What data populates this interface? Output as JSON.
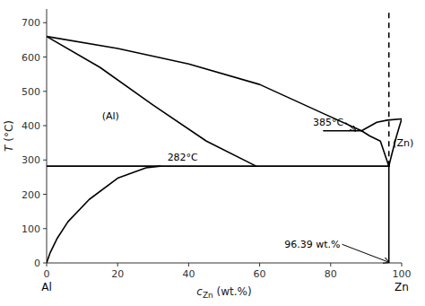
{
  "chart_data": {
    "type": "line",
    "xlabel": "cZn (wt.%)",
    "ylabel": "T (°C)",
    "xlim": [
      0,
      100
    ],
    "ylim": [
      0,
      740
    ],
    "xticks": [
      0,
      20,
      40,
      60,
      80,
      100
    ],
    "yticks": [
      0,
      100,
      200,
      300,
      400,
      500,
      600,
      700
    ],
    "grid": false,
    "color": "#000000",
    "series": [
      {
        "x": [
          0,
          20,
          40,
          60,
          78,
          88.7
        ],
        "values": [
          660,
          625,
          580,
          520,
          435,
          385
        ]
      },
      {
        "x": [
          0,
          15,
          30,
          45,
          59.0
        ],
        "values": [
          660,
          570,
          460,
          355,
          282
        ]
      },
      {
        "x": [
          0,
          1,
          3,
          6,
          12,
          20,
          28,
          32
        ],
        "values": [
          0,
          30,
          72,
          120,
          185,
          247,
          277,
          282
        ]
      },
      {
        "x": [
          0,
          96.39
        ],
        "values": [
          282,
          282
        ]
      },
      {
        "x": [
          78.0,
          88.7
        ],
        "values": [
          385,
          385
        ]
      },
      {
        "x": [
          88.7,
          93,
          96.0,
          100
        ],
        "values": [
          385,
          410,
          416,
          419.5
        ]
      },
      {
        "x": [
          88.7,
          91,
          94,
          96.39
        ],
        "values": [
          385,
          370,
          355,
          282
        ]
      },
      {
        "x": [
          96.39,
          97,
          98.5,
          100
        ],
        "values": [
          282,
          308,
          368,
          419.5
        ]
      },
      {
        "x": [
          96.39,
          96.39
        ],
        "values": [
          0,
          282
        ]
      },
      {
        "x": [
          96.39,
          96.39
        ],
        "values": [
          282,
          740
        ],
        "line_style": "dashed"
      }
    ],
    "annotations": [
      {
        "text": "Al",
        "x": 0,
        "y": -38
      },
      {
        "text": "Zn",
        "x": 100,
        "y": -38
      },
      {
        "text": "(Al)",
        "x": 18,
        "y": 430
      },
      {
        "text": "(Zn)",
        "x": 97.5,
        "y": 350
      },
      {
        "text": "385°C",
        "x": 75,
        "y": 400,
        "arrow_x": 87,
        "arrow_y": 385
      },
      {
        "text": "282°C",
        "x": 34,
        "y": 297
      },
      {
        "text": "96.39 wt.%",
        "x": 67,
        "y": 45,
        "arrow_x": 96.39,
        "arrow_y": 2
      }
    ]
  }
}
